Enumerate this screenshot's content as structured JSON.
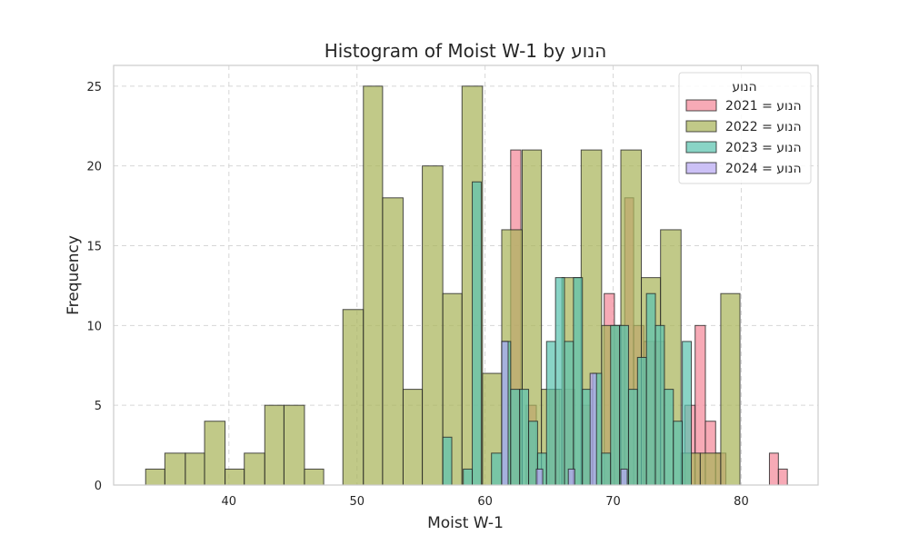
{
  "chart_data": {
    "type": "bar",
    "subtype": "histogram",
    "title": "Histogram of Moist W-1 by הנוע",
    "xlabel": "Moist W-1",
    "ylabel": "Frequency",
    "xlim": [
      31,
      86
    ],
    "ylim": [
      0,
      26.3
    ],
    "xticks": [
      40,
      50,
      60,
      70,
      80
    ],
    "yticks": [
      0,
      5,
      10,
      15,
      20,
      25
    ],
    "grid": true,
    "legend": {
      "title": "הנוע",
      "placement": "top-right",
      "entries": [
        "הנוע = 2021",
        "הנוע = 2022",
        "הנוע = 2023",
        "הנוע = 2024"
      ]
    },
    "series": [
      {
        "name": "הנוע = 2021",
        "color": "#f4899a",
        "bins": [
          {
            "x0": 62.0,
            "x1": 62.8,
            "count": 21
          },
          {
            "x0": 63.2,
            "x1": 64.0,
            "count": 5
          },
          {
            "x0": 65.0,
            "x1": 65.8,
            "count": 6
          },
          {
            "x0": 66.2,
            "x1": 67.0,
            "count": 6
          },
          {
            "x0": 67.5,
            "x1": 68.3,
            "count": 5
          },
          {
            "x0": 69.3,
            "x1": 70.1,
            "count": 12
          },
          {
            "x0": 70.1,
            "x1": 70.9,
            "count": 10
          },
          {
            "x0": 70.9,
            "x1": 71.6,
            "count": 18
          },
          {
            "x0": 71.6,
            "x1": 72.4,
            "count": 10
          },
          {
            "x0": 72.4,
            "x1": 73.2,
            "count": 9
          },
          {
            "x0": 73.2,
            "x1": 74.0,
            "count": 9
          },
          {
            "x0": 75.6,
            "x1": 76.4,
            "count": 5
          },
          {
            "x0": 76.4,
            "x1": 77.2,
            "count": 10
          },
          {
            "x0": 77.2,
            "x1": 78.0,
            "count": 4
          },
          {
            "x0": 78.0,
            "x1": 78.8,
            "count": 2
          },
          {
            "x0": 82.2,
            "x1": 82.9,
            "count": 2
          },
          {
            "x0": 82.9,
            "x1": 83.6,
            "count": 1
          }
        ]
      },
      {
        "name": "הנוע = 2022",
        "color": "#a9b45a",
        "bins": [
          {
            "x0": 33.5,
            "x1": 35.0,
            "count": 1
          },
          {
            "x0": 35.0,
            "x1": 36.6,
            "count": 2
          },
          {
            "x0": 36.6,
            "x1": 38.1,
            "count": 2
          },
          {
            "x0": 38.1,
            "x1": 39.7,
            "count": 4
          },
          {
            "x0": 39.7,
            "x1": 41.2,
            "count": 1
          },
          {
            "x0": 41.2,
            "x1": 42.8,
            "count": 2
          },
          {
            "x0": 42.8,
            "x1": 44.3,
            "count": 5
          },
          {
            "x0": 44.3,
            "x1": 45.9,
            "count": 5
          },
          {
            "x0": 45.9,
            "x1": 47.4,
            "count": 1
          },
          {
            "x0": 48.9,
            "x1": 50.5,
            "count": 11
          },
          {
            "x0": 50.5,
            "x1": 52.0,
            "count": 25
          },
          {
            "x0": 52.0,
            "x1": 53.6,
            "count": 18
          },
          {
            "x0": 53.6,
            "x1": 55.1,
            "count": 6
          },
          {
            "x0": 55.1,
            "x1": 56.7,
            "count": 20
          },
          {
            "x0": 56.7,
            "x1": 58.2,
            "count": 12
          },
          {
            "x0": 58.2,
            "x1": 59.8,
            "count": 25
          },
          {
            "x0": 59.8,
            "x1": 61.3,
            "count": 7
          },
          {
            "x0": 61.3,
            "x1": 62.9,
            "count": 16
          },
          {
            "x0": 62.9,
            "x1": 64.4,
            "count": 21
          },
          {
            "x0": 64.4,
            "x1": 66.0,
            "count": 6
          },
          {
            "x0": 66.0,
            "x1": 67.5,
            "count": 13
          },
          {
            "x0": 67.5,
            "x1": 69.1,
            "count": 21
          },
          {
            "x0": 69.1,
            "x1": 70.6,
            "count": 10
          },
          {
            "x0": 70.6,
            "x1": 72.2,
            "count": 21
          },
          {
            "x0": 72.2,
            "x1": 73.7,
            "count": 13
          },
          {
            "x0": 73.7,
            "x1": 75.3,
            "count": 16
          },
          {
            "x0": 75.3,
            "x1": 76.8,
            "count": 2
          },
          {
            "x0": 76.8,
            "x1": 78.4,
            "count": 2
          },
          {
            "x0": 78.4,
            "x1": 79.9,
            "count": 12
          }
        ]
      },
      {
        "name": "הנוע = 2023",
        "color": "#5cc4b0",
        "bins": [
          {
            "x0": 56.7,
            "x1": 57.4,
            "count": 3
          },
          {
            "x0": 58.3,
            "x1": 59.0,
            "count": 1
          },
          {
            "x0": 59.0,
            "x1": 59.7,
            "count": 19
          },
          {
            "x0": 60.5,
            "x1": 61.3,
            "count": 2
          },
          {
            "x0": 61.3,
            "x1": 62.0,
            "count": 9
          },
          {
            "x0": 62.0,
            "x1": 62.7,
            "count": 6
          },
          {
            "x0": 62.7,
            "x1": 63.4,
            "count": 6
          },
          {
            "x0": 63.4,
            "x1": 64.1,
            "count": 4
          },
          {
            "x0": 64.1,
            "x1": 64.8,
            "count": 2
          },
          {
            "x0": 64.8,
            "x1": 65.5,
            "count": 9
          },
          {
            "x0": 65.5,
            "x1": 66.2,
            "count": 13
          },
          {
            "x0": 66.2,
            "x1": 66.9,
            "count": 9
          },
          {
            "x0": 66.9,
            "x1": 67.6,
            "count": 13
          },
          {
            "x0": 67.6,
            "x1": 68.4,
            "count": 6
          },
          {
            "x0": 68.4,
            "x1": 69.1,
            "count": 7
          },
          {
            "x0": 69.1,
            "x1": 69.8,
            "count": 2
          },
          {
            "x0": 69.8,
            "x1": 70.5,
            "count": 10
          },
          {
            "x0": 70.5,
            "x1": 71.2,
            "count": 10
          },
          {
            "x0": 71.2,
            "x1": 71.9,
            "count": 6
          },
          {
            "x0": 71.9,
            "x1": 72.6,
            "count": 8
          },
          {
            "x0": 72.6,
            "x1": 73.3,
            "count": 12
          },
          {
            "x0": 73.3,
            "x1": 74.0,
            "count": 10
          },
          {
            "x0": 74.0,
            "x1": 74.7,
            "count": 6
          },
          {
            "x0": 74.7,
            "x1": 75.4,
            "count": 4
          },
          {
            "x0": 75.4,
            "x1": 76.1,
            "count": 9
          }
        ]
      },
      {
        "name": "הנוע = 2024",
        "color": "#b9a9f2",
        "bins": [
          {
            "x0": 61.3,
            "x1": 61.8,
            "count": 9
          },
          {
            "x0": 64.0,
            "x1": 64.5,
            "count": 1
          },
          {
            "x0": 66.5,
            "x1": 67.0,
            "count": 1
          },
          {
            "x0": 68.2,
            "x1": 68.7,
            "count": 7
          },
          {
            "x0": 70.6,
            "x1": 71.1,
            "count": 1
          }
        ]
      }
    ]
  }
}
